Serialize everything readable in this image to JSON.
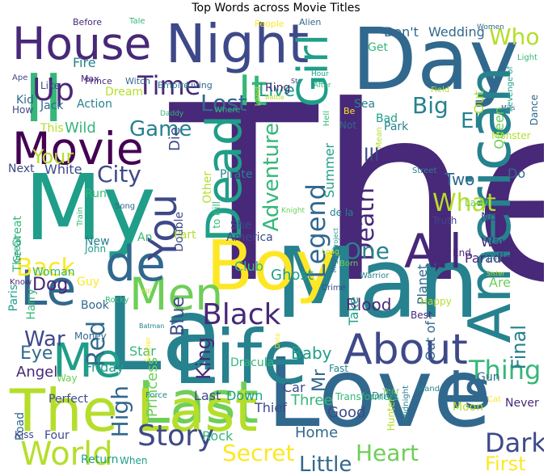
{
  "title": "Top Words across Movie Titles",
  "palette": [
    "#440154",
    "#482878",
    "#3e4989",
    "#31688e",
    "#26828e",
    "#1f9e89",
    "#35b779",
    "#6ece58",
    "#b5de2b",
    "#fde725"
  ],
  "words": [
    "The",
    "Man",
    "Love",
    "La",
    "Boy",
    "Day",
    "My",
    "Life",
    "Night",
    "Last",
    "House",
    "II",
    "Movie",
    "American",
    "Dead",
    "Men",
    "About",
    "Girl",
    "Is",
    "de",
    "Me",
    "You",
    "It",
    "The Last",
    "All",
    "World",
    "Story",
    "Black",
    "Le",
    "Up",
    "Time",
    "Heart",
    "Dark",
    "Thing",
    "Secret",
    "Legend",
    "High",
    "Back",
    "What",
    "Death",
    "City",
    "Big",
    "One",
    "Red",
    "Adventure",
    "Lost",
    "Game",
    "First",
    "Little",
    "Final",
    "Who",
    "War",
    "El",
    "King",
    "Blue",
    "Live",
    "Eye",
    "Dog",
    "Two",
    "Baby",
    "Angel",
    "Mr",
    "Three",
    "Summer",
    "Your",
    "Ghost",
    "Don't",
    "Wedding",
    "Queen",
    "Home",
    "Out",
    "Star",
    "Friday",
    "Moon",
    "Last",
    "Down",
    "Thief",
    "Club",
    "Planet",
    "Blood",
    "Good",
    "Car",
    "Paradise",
    "Out of",
    "Are",
    "Never",
    "Kid",
    "Jack",
    "Get",
    "Before",
    "Tale",
    "People",
    "Alien",
    "Women",
    "Fire",
    "Prince",
    "Witch",
    "Empire",
    "Living",
    "Like",
    "Ape",
    "Max",
    "Dream",
    "Action",
    "How",
    "This",
    "Wild",
    "Next",
    "White",
    "Run",
    "Ring",
    "Battle",
    "Hour",
    "After",
    "St",
    "Light",
    "Dance",
    "Revenge of",
    "Miss",
    "Monster",
    "Bad",
    "Park",
    "Not",
    "Sea",
    "Where",
    "Land",
    "Die",
    "Daddy",
    "Other",
    "Pirate",
    "Street",
    "Do",
    "Lady",
    "Truth",
    "No",
    "Way",
    "End",
    "Evil",
    "Sister",
    "of",
    "Paris",
    "Harry",
    "Know",
    "Woman",
    "Guy",
    "Rocky",
    "Kill",
    "Book",
    "Batman",
    "Soldier",
    "Money",
    "Perfect",
    "Force",
    "Princess",
    "Dracula",
    "Date",
    "Fast",
    "Transformers",
    "Drive",
    "Year",
    "Gun",
    "Stand",
    "Cat",
    "Hunter",
    "Midnight",
    "Road",
    "Kiss",
    "Four",
    "Return",
    "When",
    "Rock",
    "Mighty",
    "Crime",
    "Born",
    "Warrior",
    "Happy",
    "Best",
    "Take",
    "de la",
    "Project",
    "Knight",
    "She",
    "America",
    "Part",
    "Double",
    "Train",
    "Song",
    "to Kill",
    "An",
    "New",
    "John",
    "Long",
    "Be",
    "Field",
    "Hell",
    "Mean",
    "III",
    "The Great",
    "Great",
    "Way"
  ]
}
